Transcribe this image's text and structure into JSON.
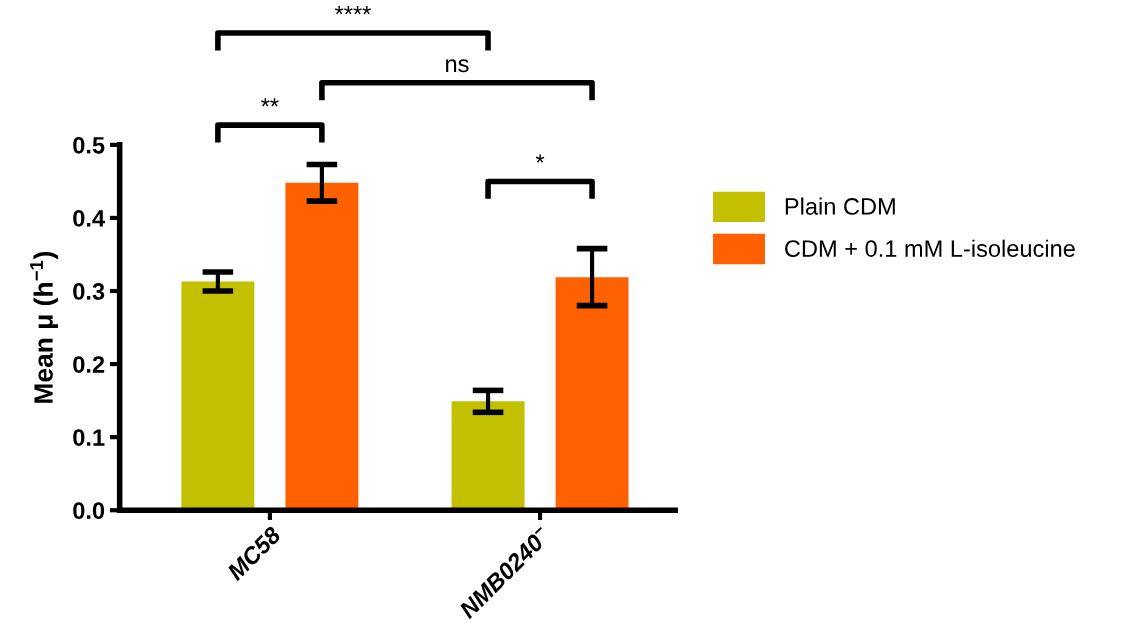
{
  "chart_data": {
    "type": "bar",
    "ylabel": "Mean μ (h$^{−1}$)",
    "categories": [
      "MC58",
      "NMB0240$^{−}$"
    ],
    "series": [
      {
        "name": "Plain CDM",
        "color": "#c2c000",
        "values": [
          0.313,
          0.149
        ],
        "errors": [
          0.013,
          0.015
        ]
      },
      {
        "name": "CDM + 0.1 mM L-isoleucine",
        "color": "#ff6000",
        "values": [
          0.448,
          0.319
        ],
        "errors": [
          0.025,
          0.039
        ]
      }
    ],
    "ylim": [
      0,
      0.5
    ],
    "yticks": [
      {
        "value": 0,
        "label": "0.0"
      },
      0.1,
      0.2,
      0.3,
      0.4,
      0.5
    ],
    "annotations": [
      "****",
      "ns",
      "**",
      "*"
    ],
    "legend": "right",
    "grid": false
  }
}
